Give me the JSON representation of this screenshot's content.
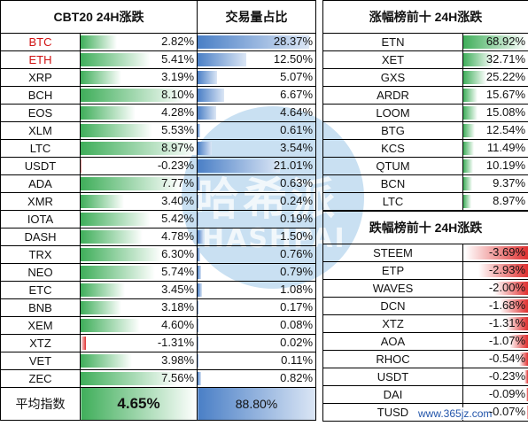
{
  "cbt": {
    "header": "CBT20 24H涨跌",
    "vol_header": "交易量占比",
    "avg_label": "平均指数",
    "avg_value": "4.65%",
    "avg_vol": "88.80%",
    "rows": [
      {
        "sym": "BTC",
        "chg": "2.82%",
        "chg_n": 2.82,
        "vol": "28.37%",
        "vol_n": 28.37,
        "red": true
      },
      {
        "sym": "ETH",
        "chg": "5.41%",
        "chg_n": 5.41,
        "vol": "12.50%",
        "vol_n": 12.5,
        "red": true
      },
      {
        "sym": "XRP",
        "chg": "3.19%",
        "chg_n": 3.19,
        "vol": "5.07%",
        "vol_n": 5.07
      },
      {
        "sym": "BCH",
        "chg": "8.10%",
        "chg_n": 8.1,
        "vol": "6.67%",
        "vol_n": 6.67
      },
      {
        "sym": "EOS",
        "chg": "4.28%",
        "chg_n": 4.28,
        "vol": "4.64%",
        "vol_n": 4.64
      },
      {
        "sym": "XLM",
        "chg": "5.53%",
        "chg_n": 5.53,
        "vol": "0.61%",
        "vol_n": 0.61
      },
      {
        "sym": "LTC",
        "chg": "8.97%",
        "chg_n": 8.97,
        "vol": "3.54%",
        "vol_n": 3.54
      },
      {
        "sym": "USDT",
        "chg": "-0.23%",
        "chg_n": -0.23,
        "vol": "21.01%",
        "vol_n": 21.01
      },
      {
        "sym": "ADA",
        "chg": "7.77%",
        "chg_n": 7.77,
        "vol": "0.63%",
        "vol_n": 0.63
      },
      {
        "sym": "XMR",
        "chg": "3.40%",
        "chg_n": 3.4,
        "vol": "0.24%",
        "vol_n": 0.24
      },
      {
        "sym": "IOTA",
        "chg": "5.42%",
        "chg_n": 5.42,
        "vol": "0.19%",
        "vol_n": 0.19
      },
      {
        "sym": "DASH",
        "chg": "4.78%",
        "chg_n": 4.78,
        "vol": "1.50%",
        "vol_n": 1.5
      },
      {
        "sym": "TRX",
        "chg": "6.30%",
        "chg_n": 6.3,
        "vol": "0.76%",
        "vol_n": 0.76
      },
      {
        "sym": "NEO",
        "chg": "5.74%",
        "chg_n": 5.74,
        "vol": "0.79%",
        "vol_n": 0.79
      },
      {
        "sym": "ETC",
        "chg": "3.45%",
        "chg_n": 3.45,
        "vol": "1.08%",
        "vol_n": 1.08
      },
      {
        "sym": "BNB",
        "chg": "3.18%",
        "chg_n": 3.18,
        "vol": "0.17%",
        "vol_n": 0.17
      },
      {
        "sym": "XEM",
        "chg": "4.60%",
        "chg_n": 4.6,
        "vol": "0.08%",
        "vol_n": 0.08
      },
      {
        "sym": "XTZ",
        "chg": "-1.31%",
        "chg_n": -1.31,
        "vol": "0.02%",
        "vol_n": 0.02
      },
      {
        "sym": "VET",
        "chg": "3.98%",
        "chg_n": 3.98,
        "vol": "0.11%",
        "vol_n": 0.11
      },
      {
        "sym": "ZEC",
        "chg": "7.56%",
        "chg_n": 7.56,
        "vol": "0.82%",
        "vol_n": 0.82
      }
    ]
  },
  "gainers": {
    "header": "涨幅榜前十 24H涨跌",
    "rows": [
      {
        "sym": "ETN",
        "chg": "68.92%",
        "chg_n": 68.92
      },
      {
        "sym": "XET",
        "chg": "32.71%",
        "chg_n": 32.71
      },
      {
        "sym": "GXS",
        "chg": "25.22%",
        "chg_n": 25.22
      },
      {
        "sym": "ARDR",
        "chg": "15.67%",
        "chg_n": 15.67
      },
      {
        "sym": "LOOM",
        "chg": "15.08%",
        "chg_n": 15.08
      },
      {
        "sym": "BTG",
        "chg": "12.54%",
        "chg_n": 12.54
      },
      {
        "sym": "KCS",
        "chg": "11.49%",
        "chg_n": 11.49
      },
      {
        "sym": "QTUM",
        "chg": "10.19%",
        "chg_n": 10.19
      },
      {
        "sym": "BCN",
        "chg": "9.37%",
        "chg_n": 9.37
      },
      {
        "sym": "LTC",
        "chg": "8.97%",
        "chg_n": 8.97
      }
    ]
  },
  "losers": {
    "header": "跌幅榜前十 24H涨跌",
    "rows": [
      {
        "sym": "STEEM",
        "chg": "-3.69%",
        "chg_n": -3.69
      },
      {
        "sym": "ETP",
        "chg": "-2.93%",
        "chg_n": -2.93
      },
      {
        "sym": "WAVES",
        "chg": "-2.00%",
        "chg_n": -2.0
      },
      {
        "sym": "DCN",
        "chg": "-1.68%",
        "chg_n": -1.68
      },
      {
        "sym": "XTZ",
        "chg": "-1.31%",
        "chg_n": -1.31
      },
      {
        "sym": "AOA",
        "chg": "-1.07%",
        "chg_n": -1.07
      },
      {
        "sym": "RHOC",
        "chg": "-0.54%",
        "chg_n": -0.54
      },
      {
        "sym": "USDT",
        "chg": "-0.23%",
        "chg_n": -0.23
      },
      {
        "sym": "DAI",
        "chg": "-0.09%",
        "chg_n": -0.09
      },
      {
        "sym": "TUSD",
        "chg": "-0.07%",
        "chg_n": -0.07
      }
    ]
  },
  "watermark": {
    "cn": "哈希派",
    "en": "HASHPAI"
  },
  "footer": "www.365jz.com"
}
